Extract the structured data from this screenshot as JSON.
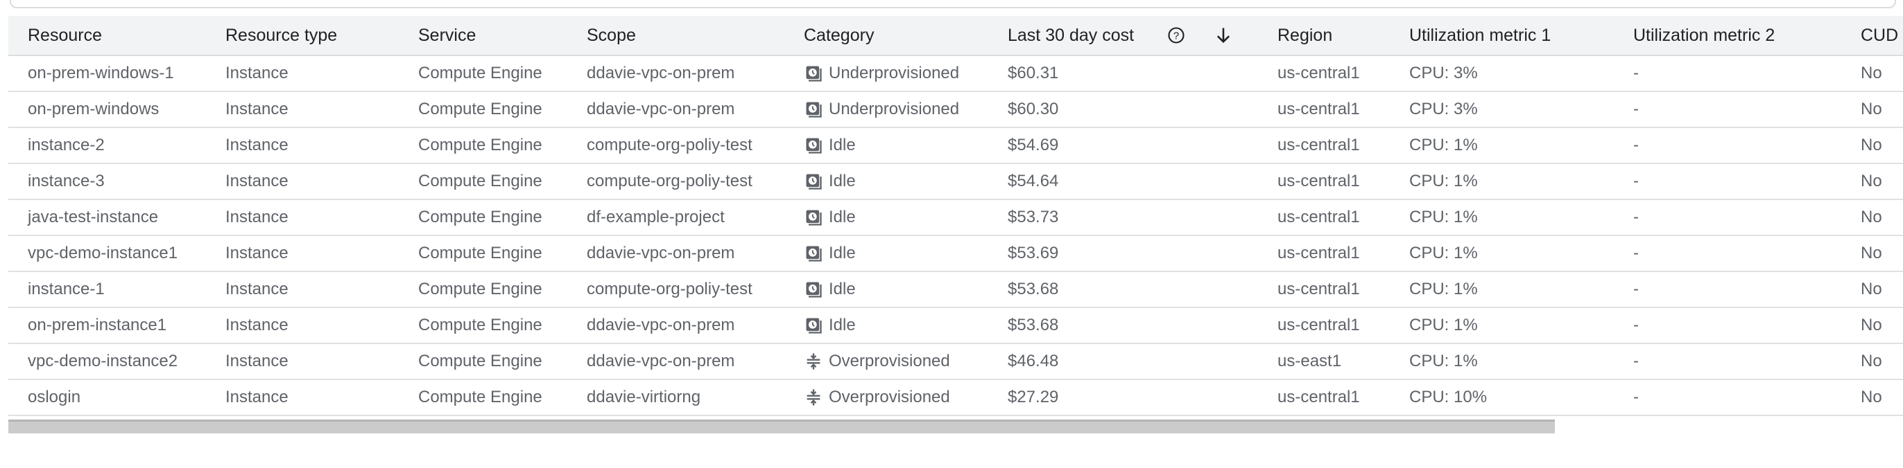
{
  "columns": [
    "Resource",
    "Resource type",
    "Service",
    "Scope",
    "Category",
    "Last 30 day cost",
    "Region",
    "Utilization metric 1",
    "Utilization metric 2",
    "CUD"
  ],
  "header_icons": {
    "help": "help-circle-icon",
    "sort": "arrow-down-icon"
  },
  "rows": [
    {
      "resource": "on-prem-windows-1",
      "type": "Instance",
      "service": "Compute Engine",
      "scope": "ddavie-vpc-on-prem",
      "category": "Underprovisioned",
      "icon": "clock-icon",
      "cost": "$60.31",
      "region": "us-central1",
      "util1": "CPU: 3%",
      "util2": "-",
      "cud": "No"
    },
    {
      "resource": "on-prem-windows",
      "type": "Instance",
      "service": "Compute Engine",
      "scope": "ddavie-vpc-on-prem",
      "category": "Underprovisioned",
      "icon": "clock-icon",
      "cost": "$60.30",
      "region": "us-central1",
      "util1": "CPU: 3%",
      "util2": "-",
      "cud": "No"
    },
    {
      "resource": "instance-2",
      "type": "Instance",
      "service": "Compute Engine",
      "scope": "compute-org-poliy-test",
      "category": "Idle",
      "icon": "clock-icon",
      "cost": "$54.69",
      "region": "us-central1",
      "util1": "CPU: 1%",
      "util2": "-",
      "cud": "No"
    },
    {
      "resource": "instance-3",
      "type": "Instance",
      "service": "Compute Engine",
      "scope": "compute-org-poliy-test",
      "category": "Idle",
      "icon": "clock-icon",
      "cost": "$54.64",
      "region": "us-central1",
      "util1": "CPU: 1%",
      "util2": "-",
      "cud": "No"
    },
    {
      "resource": "java-test-instance",
      "type": "Instance",
      "service": "Compute Engine",
      "scope": "df-example-project",
      "category": "Idle",
      "icon": "clock-icon",
      "cost": "$53.73",
      "region": "us-central1",
      "util1": "CPU: 1%",
      "util2": "-",
      "cud": "No"
    },
    {
      "resource": "vpc-demo-instance1",
      "type": "Instance",
      "service": "Compute Engine",
      "scope": "ddavie-vpc-on-prem",
      "category": "Idle",
      "icon": "clock-icon",
      "cost": "$53.69",
      "region": "us-central1",
      "util1": "CPU: 1%",
      "util2": "-",
      "cud": "No"
    },
    {
      "resource": "instance-1",
      "type": "Instance",
      "service": "Compute Engine",
      "scope": "compute-org-poliy-test",
      "category": "Idle",
      "icon": "clock-icon",
      "cost": "$53.68",
      "region": "us-central1",
      "util1": "CPU: 1%",
      "util2": "-",
      "cud": "No"
    },
    {
      "resource": "on-prem-instance1",
      "type": "Instance",
      "service": "Compute Engine",
      "scope": "ddavie-vpc-on-prem",
      "category": "Idle",
      "icon": "clock-icon",
      "cost": "$53.68",
      "region": "us-central1",
      "util1": "CPU: 1%",
      "util2": "-",
      "cud": "No"
    },
    {
      "resource": "vpc-demo-instance2",
      "type": "Instance",
      "service": "Compute Engine",
      "scope": "ddavie-vpc-on-prem",
      "category": "Overprovisioned",
      "icon": "compress-icon",
      "cost": "$46.48",
      "region": "us-east1",
      "util1": "CPU: 1%",
      "util2": "-",
      "cud": "No"
    },
    {
      "resource": "oslogin",
      "type": "Instance",
      "service": "Compute Engine",
      "scope": "ddavie-virtiorng",
      "category": "Overprovisioned",
      "icon": "compress-icon",
      "cost": "$27.29",
      "region": "us-central1",
      "util1": "CPU: 10%",
      "util2": "-",
      "cud": "No"
    }
  ]
}
